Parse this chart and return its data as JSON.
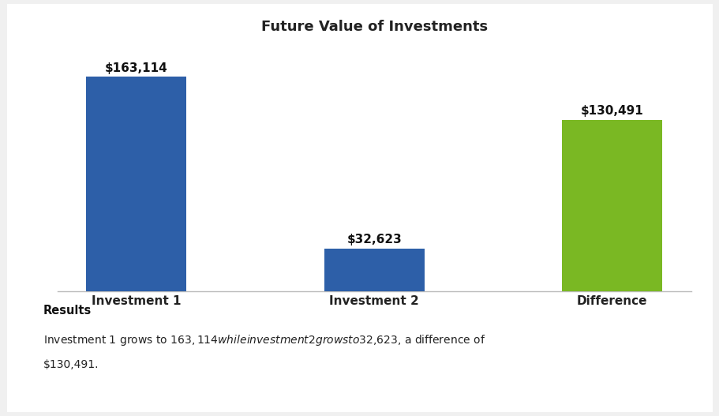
{
  "title": "Future Value of Investments",
  "categories": [
    "Investment 1",
    "Investment 2",
    "Difference"
  ],
  "values": [
    163114,
    32623,
    130491
  ],
  "bar_colors": [
    "#2d5fa8",
    "#2d5fa8",
    "#7ab823"
  ],
  "bar_labels": [
    "$163,114",
    "$32,623",
    "$130,491"
  ],
  "background_color": "#ffffff",
  "plot_bg_color": "#ffffff",
  "outer_bg_color": "#f0f0f0",
  "ylim": [
    0,
    190000
  ],
  "title_fontsize": 13,
  "label_fontsize": 11,
  "tick_fontsize": 11,
  "results_title": "Results",
  "results_line1": "Investment 1 grows to $163,114 while investment 2 grows to $32,623, a difference of",
  "results_line2": "$130,491.",
  "bar_width": 0.42
}
